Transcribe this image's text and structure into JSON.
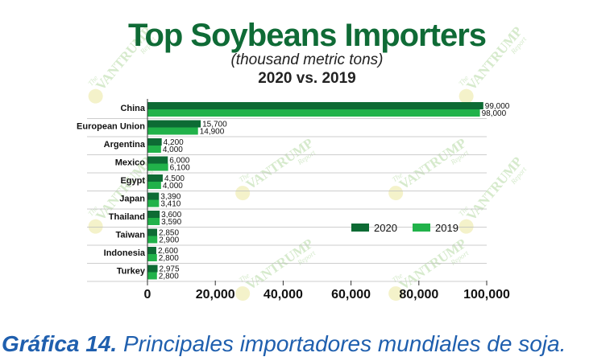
{
  "colors": {
    "title": "#0f6b36",
    "series_2020": "#0d6b34",
    "series_2019": "#21b24a",
    "caption": "#1f5fae"
  },
  "watermark": {
    "word": "VANTRUMP",
    "top": "The",
    "bottom": "Report"
  },
  "chart_data": {
    "type": "bar",
    "orientation": "horizontal",
    "title": "Top Soybeans Importers",
    "subtitle": "(thousand metric tons)",
    "subtitle2": "2020 vs. 2019",
    "categories": [
      "China",
      "European Union",
      "Argentina",
      "Mexico",
      "Egypt",
      "Japan",
      "Thailand",
      "Taiwan",
      "Indonesia",
      "Turkey"
    ],
    "series": [
      {
        "name": "2020",
        "values": [
          99000,
          15700,
          4200,
          6000,
          4500,
          3390,
          3600,
          2850,
          2600,
          2975
        ],
        "labels": [
          "99,000",
          "15,700",
          "4,200",
          "6,000",
          "4,500",
          "3,390",
          "3,600",
          "2,850",
          "2,600",
          "2,975"
        ]
      },
      {
        "name": "2019",
        "values": [
          98000,
          14900,
          4000,
          6100,
          4000,
          3410,
          3590,
          2900,
          2800,
          2800
        ],
        "labels": [
          "98,000",
          "14,900",
          "4,000",
          "6,100",
          "4,000",
          "3,410",
          "3,590",
          "2,900",
          "2,800",
          "2,800"
        ]
      }
    ],
    "xlim": [
      0,
      100000
    ],
    "xticks": [
      0,
      20000,
      40000,
      60000,
      80000,
      100000
    ],
    "xtick_labels": [
      "0",
      "20,000",
      "40,000",
      "60,000",
      "80,000",
      "100,000"
    ],
    "legend_position": "right",
    "grid": "horizontal separators"
  },
  "caption": {
    "bold": "Gráfica 14.",
    "text": " Principales importadores mundiales de soja."
  }
}
